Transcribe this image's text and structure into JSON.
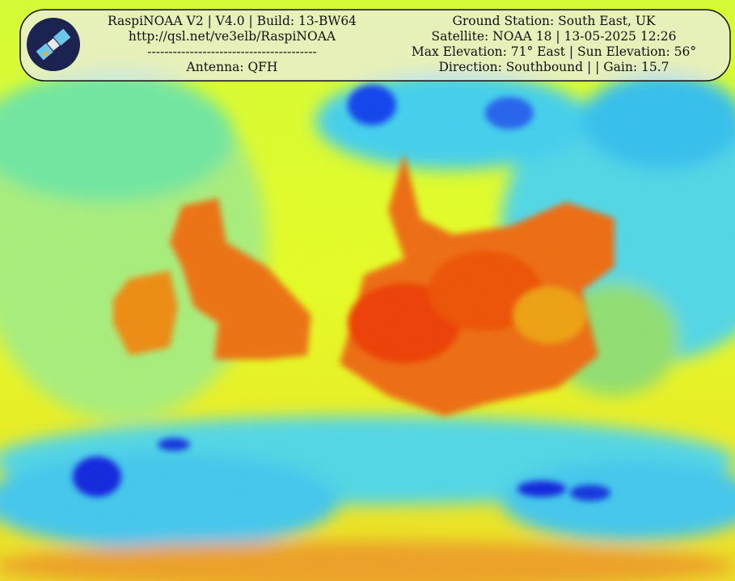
{
  "header": {
    "left_lines": [
      "RaspiNOAA V2 | V4.0 | Build: 13-BW64",
      "http://qsl.net/ve3elb/RaspiNOAA",
      "----------------------------------------",
      "Antenna: QFH"
    ],
    "right_lines": [
      "Ground Station: South East, UK",
      "Satellite: NOAA 18 | 13-05-2025 12:26",
      "Max Elevation: 71° East | Sun Elevation: 56°",
      "Direction: Southbound | | Gain: 15.7"
    ]
  }
}
